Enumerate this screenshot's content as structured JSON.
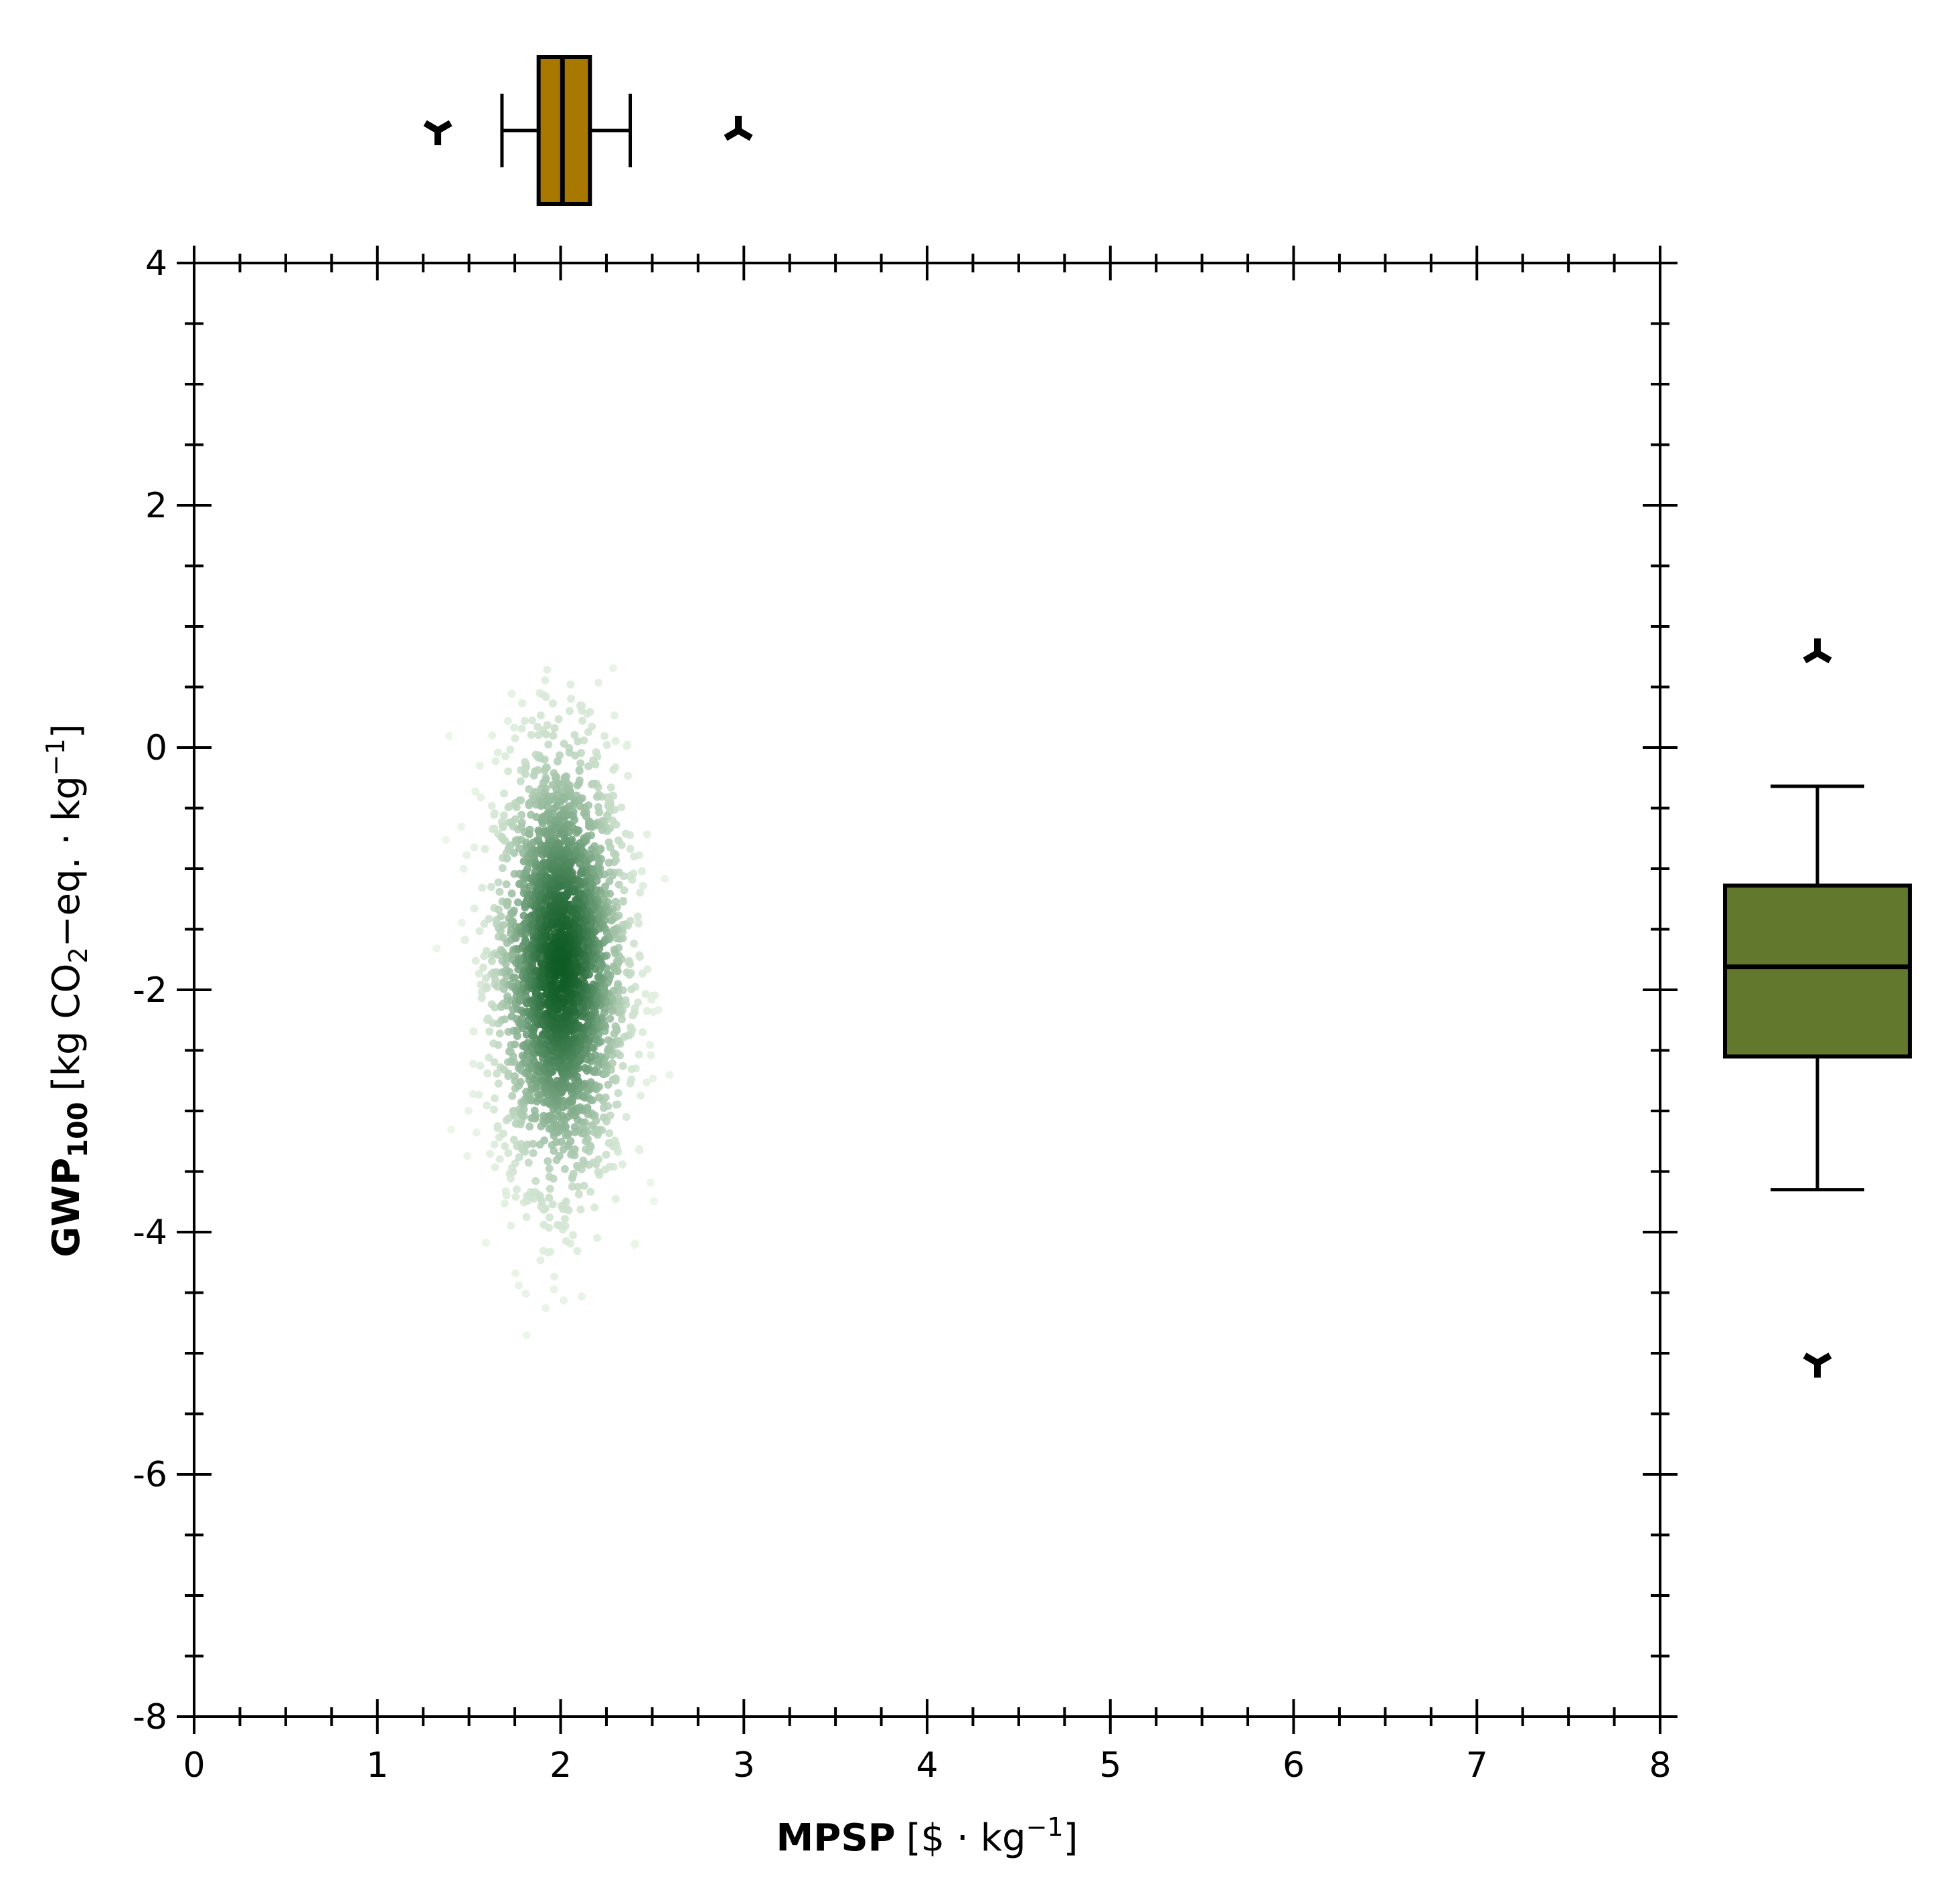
{
  "chart_data": {
    "type": "scatter",
    "title": "",
    "xlabel": {
      "bold": "MPSP",
      "rest": "[$ · kg",
      "sup": "−1",
      "close": "]"
    },
    "ylabel": {
      "bold": "GWP",
      "bold_sub": "100",
      "rest1": "[kg CO",
      "sub": "2",
      "rest2": "−eq. · kg",
      "sup": "−1",
      "close": "]"
    },
    "xlim": [
      0,
      8
    ],
    "ylim": [
      -8,
      4
    ],
    "x_ticks": [
      0,
      1,
      2,
      3,
      4,
      5,
      6,
      7,
      8
    ],
    "y_ticks": [
      -8,
      -6,
      -4,
      -2,
      0,
      2,
      4
    ],
    "grid": false,
    "density_cloud": {
      "x_center": 2.0,
      "y_center": -1.8,
      "x_spread": 0.18,
      "y_spread": 0.9,
      "x_range": [
        1.3,
        3.0
      ],
      "y_range": [
        -5.1,
        0.8
      ],
      "colormap": "greens"
    },
    "x_boxplot": {
      "q1": 1.88,
      "median": 2.01,
      "q3": 2.16,
      "whisker_low": 1.68,
      "whisker_high": 2.38,
      "outliers": [
        1.33,
        2.97
      ],
      "color": "#a87800"
    },
    "y_boxplot": {
      "q1": -2.55,
      "median": -1.81,
      "q3": -1.14,
      "whisker_low": -3.65,
      "whisker_high": -0.32,
      "outliers": [
        0.78,
        -5.08
      ],
      "color": "#62792d"
    }
  }
}
